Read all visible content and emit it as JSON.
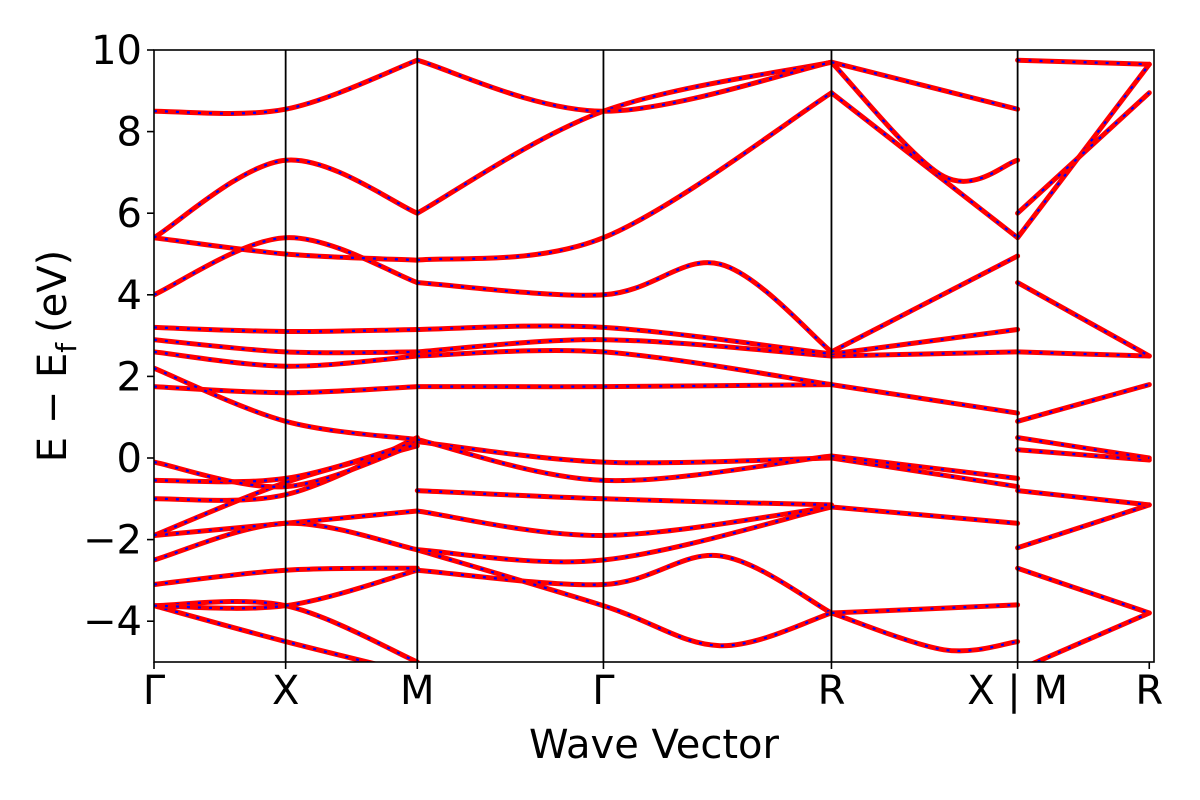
{
  "chart_data": {
    "type": "line",
    "title": "",
    "xlabel": "Wave Vector",
    "ylabel": "E − E",
    "ylabel_subscript": "f",
    "ylabel_unit": "(eV)",
    "ylim": [
      -5,
      10
    ],
    "yticks": [
      -4,
      -2,
      0,
      2,
      4,
      6,
      8,
      10
    ],
    "ytick_labels": [
      "−4",
      "−2",
      "0",
      "2",
      "4",
      "6",
      "8",
      "10"
    ],
    "xlim": [
      0,
      7.596
    ],
    "k_points": [
      {
        "label": "Γ",
        "x": 0
      },
      {
        "label": "X",
        "x": 1
      },
      {
        "label": "M",
        "x": 2
      },
      {
        "label": "Γ",
        "x": 3.414
      },
      {
        "label": "R",
        "x": 5.146
      },
      {
        "label": "X | M",
        "x": 6.56
      },
      {
        "label": "R",
        "x": 7.56
      }
    ],
    "grid": false,
    "legend": "none",
    "colors": {
      "band_solid": "#ff0000",
      "band_dashed": "#0000ff",
      "kline": "#000000"
    },
    "series": [
      {
        "values": [
          [
            0,
            -3.62
          ],
          [
            1,
            -4.5
          ],
          [
            2,
            -5.3
          ]
        ]
      },
      {
        "values": [
          [
            0,
            -3.62
          ],
          [
            1,
            -3.62
          ],
          [
            2,
            -5.0
          ]
        ]
      },
      {
        "values": [
          [
            0,
            -3.62
          ],
          [
            1,
            -3.62
          ],
          [
            2,
            -2.75
          ]
        ]
      },
      {
        "values": [
          [
            0,
            -3.1
          ],
          [
            1,
            -2.75
          ],
          [
            2,
            -2.7
          ]
        ]
      },
      {
        "values": [
          [
            0,
            -2.5
          ],
          [
            1,
            -1.6
          ],
          [
            2,
            -2.25
          ]
        ]
      },
      {
        "values": [
          [
            0,
            -1.9
          ],
          [
            1,
            -1.6
          ],
          [
            2,
            -1.3
          ]
        ]
      },
      {
        "values": [
          [
            0,
            -1.9
          ],
          [
            1,
            -0.6
          ],
          [
            2,
            0.3
          ]
        ]
      },
      {
        "values": [
          [
            0,
            -1.0
          ],
          [
            1,
            -0.9
          ],
          [
            2,
            0.5
          ]
        ]
      },
      {
        "values": [
          [
            0,
            -0.55
          ],
          [
            1,
            -0.5
          ],
          [
            2,
            0.4
          ]
        ]
      },
      {
        "values": [
          [
            0,
            -0.1
          ],
          [
            1,
            -0.7
          ],
          [
            2,
            0.35
          ]
        ]
      },
      {
        "values": [
          [
            0,
            1.75
          ],
          [
            1,
            1.6
          ],
          [
            2,
            1.75
          ]
        ]
      },
      {
        "values": [
          [
            0,
            2.2
          ],
          [
            1,
            0.9
          ],
          [
            2,
            0.45
          ]
        ]
      },
      {
        "values": [
          [
            0,
            2.6
          ],
          [
            1,
            2.25
          ],
          [
            2,
            2.5
          ]
        ]
      },
      {
        "values": [
          [
            0,
            2.9
          ],
          [
            1,
            2.6
          ],
          [
            2,
            2.6
          ]
        ]
      },
      {
        "values": [
          [
            0,
            3.2
          ],
          [
            1,
            3.1
          ],
          [
            2,
            3.15
          ]
        ]
      },
      {
        "values": [
          [
            0,
            4.0
          ],
          [
            1,
            5.4
          ],
          [
            2,
            4.3
          ]
        ]
      },
      {
        "values": [
          [
            0,
            5.4
          ],
          [
            1,
            5.0
          ],
          [
            2,
            4.85
          ]
        ]
      },
      {
        "values": [
          [
            0,
            5.4
          ],
          [
            1,
            7.3
          ],
          [
            2,
            6.0
          ]
        ]
      },
      {
        "values": [
          [
            0,
            8.5
          ],
          [
            1,
            8.55
          ],
          [
            2,
            9.75
          ]
        ]
      },
      {
        "values": [
          [
            2,
            -2.75
          ],
          [
            3.414,
            -3.1
          ],
          [
            4.3,
            -2.4
          ],
          [
            5.146,
            -3.8
          ]
        ]
      },
      {
        "values": [
          [
            2,
            -2.25
          ],
          [
            3.414,
            -3.62
          ],
          [
            4.3,
            -4.6
          ],
          [
            5.146,
            -3.8
          ]
        ]
      },
      {
        "values": [
          [
            2,
            -2.25
          ],
          [
            3.414,
            -2.5
          ],
          [
            5.146,
            -1.2
          ]
        ]
      },
      {
        "values": [
          [
            2,
            -1.3
          ],
          [
            3.414,
            -1.9
          ],
          [
            5.146,
            -1.2
          ]
        ]
      },
      {
        "values": [
          [
            2,
            -0.8
          ],
          [
            3.414,
            -1.0
          ],
          [
            5.146,
            -1.15
          ]
        ]
      },
      {
        "values": [
          [
            2,
            0.4
          ],
          [
            3.414,
            -0.1
          ],
          [
            5.146,
            0.0
          ]
        ]
      },
      {
        "values": [
          [
            2,
            0.45
          ],
          [
            3.414,
            -0.55
          ],
          [
            5.146,
            0.05
          ]
        ]
      },
      {
        "values": [
          [
            2,
            1.75
          ],
          [
            3.414,
            1.75
          ],
          [
            5.146,
            1.8
          ]
        ]
      },
      {
        "values": [
          [
            2,
            2.5
          ],
          [
            3.414,
            2.6
          ],
          [
            5.146,
            1.8
          ]
        ]
      },
      {
        "values": [
          [
            2,
            2.6
          ],
          [
            3.414,
            2.9
          ],
          [
            5.146,
            2.5
          ]
        ]
      },
      {
        "values": [
          [
            2,
            3.15
          ],
          [
            3.414,
            3.2
          ],
          [
            5.146,
            2.55
          ]
        ]
      },
      {
        "values": [
          [
            2,
            4.3
          ],
          [
            3.414,
            4.0
          ],
          [
            4.3,
            4.75
          ],
          [
            5.146,
            2.6
          ]
        ]
      },
      {
        "values": [
          [
            2,
            4.85
          ],
          [
            3.414,
            5.4
          ],
          [
            5.146,
            8.95
          ]
        ]
      },
      {
        "values": [
          [
            2,
            6.0
          ],
          [
            3.414,
            8.5
          ],
          [
            5.146,
            9.7
          ]
        ]
      },
      {
        "values": [
          [
            2,
            9.75
          ],
          [
            3.414,
            8.5
          ],
          [
            5.146,
            9.7
          ]
        ]
      },
      {
        "values": [
          [
            5.146,
            -3.8
          ],
          [
            6.0,
            -4.7
          ],
          [
            6.56,
            -4.5
          ]
        ]
      },
      {
        "values": [
          [
            5.146,
            -3.8
          ],
          [
            6.56,
            -3.6
          ]
        ]
      },
      {
        "values": [
          [
            5.146,
            -1.2
          ],
          [
            6.56,
            -1.6
          ]
        ]
      },
      {
        "values": [
          [
            5.146,
            0.0
          ],
          [
            6.56,
            -0.7
          ]
        ]
      },
      {
        "values": [
          [
            5.146,
            0.05
          ],
          [
            6.56,
            -0.5
          ]
        ]
      },
      {
        "values": [
          [
            5.146,
            1.8
          ],
          [
            6.56,
            1.1
          ]
        ]
      },
      {
        "values": [
          [
            5.146,
            2.5
          ],
          [
            6.56,
            2.6
          ]
        ]
      },
      {
        "values": [
          [
            5.146,
            2.55
          ],
          [
            6.56,
            3.15
          ]
        ]
      },
      {
        "values": [
          [
            5.146,
            2.6
          ],
          [
            6.56,
            4.95
          ]
        ]
      },
      {
        "values": [
          [
            5.146,
            8.95
          ],
          [
            6.56,
            5.4
          ]
        ]
      },
      {
        "values": [
          [
            5.146,
            9.7
          ],
          [
            6.0,
            6.9
          ],
          [
            6.56,
            7.3
          ]
        ]
      },
      {
        "values": [
          [
            5.146,
            9.7
          ],
          [
            6.56,
            8.55
          ]
        ]
      },
      {
        "values": [
          [
            6.56,
            -5.2
          ],
          [
            7.56,
            -3.8
          ]
        ]
      },
      {
        "values": [
          [
            6.56,
            -2.7
          ],
          [
            7.56,
            -3.8
          ]
        ]
      },
      {
        "values": [
          [
            6.56,
            -2.2
          ],
          [
            7.56,
            -1.15
          ]
        ]
      },
      {
        "values": [
          [
            6.56,
            -0.8
          ],
          [
            7.56,
            -1.15
          ]
        ]
      },
      {
        "values": [
          [
            6.56,
            0.2
          ],
          [
            7.56,
            -0.05
          ]
        ]
      },
      {
        "values": [
          [
            6.56,
            0.5
          ],
          [
            7.56,
            0.0
          ]
        ]
      },
      {
        "values": [
          [
            6.56,
            0.9
          ],
          [
            7.56,
            1.8
          ]
        ]
      },
      {
        "values": [
          [
            6.56,
            2.6
          ],
          [
            7.56,
            2.5
          ]
        ]
      },
      {
        "values": [
          [
            6.56,
            4.3
          ],
          [
            7.56,
            2.5
          ]
        ]
      },
      {
        "values": [
          [
            6.56,
            5.4
          ],
          [
            7.56,
            9.65
          ]
        ]
      },
      {
        "values": [
          [
            6.56,
            6.0
          ],
          [
            7.56,
            8.95
          ]
        ]
      },
      {
        "values": [
          [
            6.56,
            9.75
          ],
          [
            7.56,
            9.65
          ]
        ]
      }
    ]
  }
}
